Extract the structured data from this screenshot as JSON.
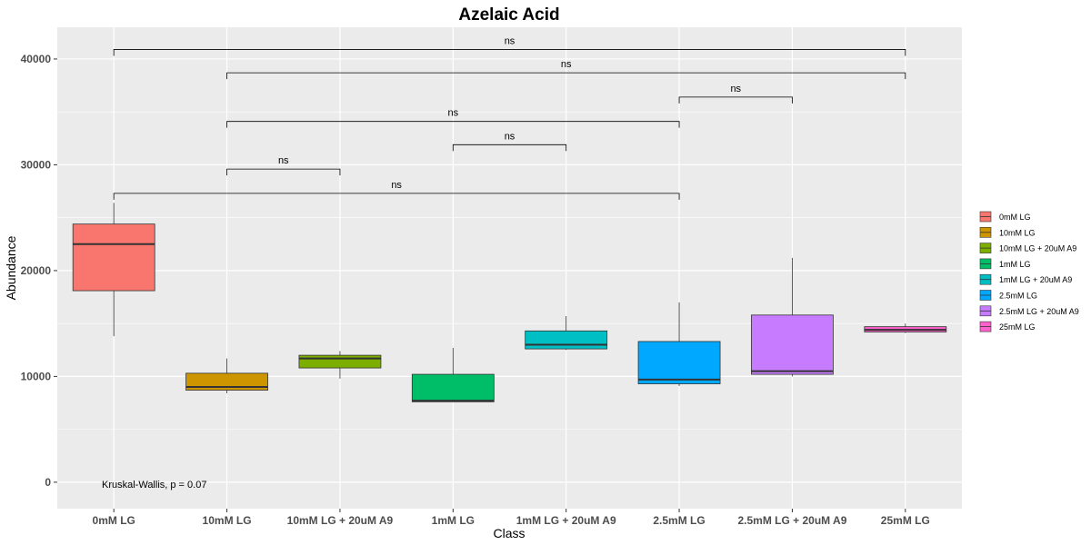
{
  "chart_data": {
    "type": "boxplot",
    "title": "Azelaic Acid",
    "xlabel": "Class",
    "ylabel": "Abundance",
    "ylim": [
      -2500,
      43000
    ],
    "yticks": [
      0,
      10000,
      20000,
      30000,
      40000
    ],
    "ytick_labels": [
      "0",
      "10000",
      "20000",
      "30000",
      "40000"
    ],
    "grid": true,
    "legend_position": "right",
    "categories": [
      "0mM LG",
      "10mM LG",
      "10mM LG + 20uM A9",
      "1mM LG",
      "1mM LG + 20uM A9",
      "2.5mM LG",
      "2.5mM LG + 20uM A9",
      "25mM LG"
    ],
    "colors": [
      "#F8766D",
      "#CD9600",
      "#7CAE00",
      "#00BE67",
      "#00BFC4",
      "#00A9FF",
      "#C77CFF",
      "#FF61CC"
    ],
    "boxes": [
      {
        "name": "0mM LG",
        "min": 13800,
        "q1": 18100,
        "median": 22500,
        "q3": 24400,
        "max": 26400
      },
      {
        "name": "10mM LG",
        "min": 8400,
        "q1": 8700,
        "median": 9000,
        "q3": 10300,
        "max": 11700
      },
      {
        "name": "10mM LG + 20uM A9",
        "min": 9800,
        "q1": 10800,
        "median": 11700,
        "q3": 12000,
        "max": 12400
      },
      {
        "name": "1mM LG",
        "min": 7600,
        "q1": 7600,
        "median": 7700,
        "q3": 10200,
        "max": 12700
      },
      {
        "name": "1mM LG + 20uM A9",
        "min": 12500,
        "q1": 12600,
        "median": 13000,
        "q3": 14300,
        "max": 15700
      },
      {
        "name": "2.5mM LG",
        "min": 9100,
        "q1": 9300,
        "median": 9700,
        "q3": 13300,
        "max": 17000
      },
      {
        "name": "2.5mM LG + 20uM A9",
        "min": 10000,
        "q1": 10200,
        "median": 10500,
        "q3": 15800,
        "max": 21200
      },
      {
        "name": "25mM LG",
        "min": 14100,
        "q1": 14200,
        "median": 14400,
        "q3": 14700,
        "max": 15000
      }
    ],
    "comparisons": [
      {
        "from": 0,
        "to": 7,
        "y": 40900,
        "label": "ns"
      },
      {
        "from": 1,
        "to": 7,
        "y": 38700,
        "label": "ns"
      },
      {
        "from": 5,
        "to": 6,
        "y": 36400,
        "label": "ns"
      },
      {
        "from": 1,
        "to": 5,
        "y": 34100,
        "label": "ns"
      },
      {
        "from": 3,
        "to": 4,
        "y": 31900,
        "label": "ns"
      },
      {
        "from": 1,
        "to": 2,
        "y": 29600,
        "label": "ns"
      },
      {
        "from": 0,
        "to": 5,
        "y": 27300,
        "label": "ns"
      }
    ],
    "annotation": "Kruskal-Wallis, p = 0.07"
  }
}
